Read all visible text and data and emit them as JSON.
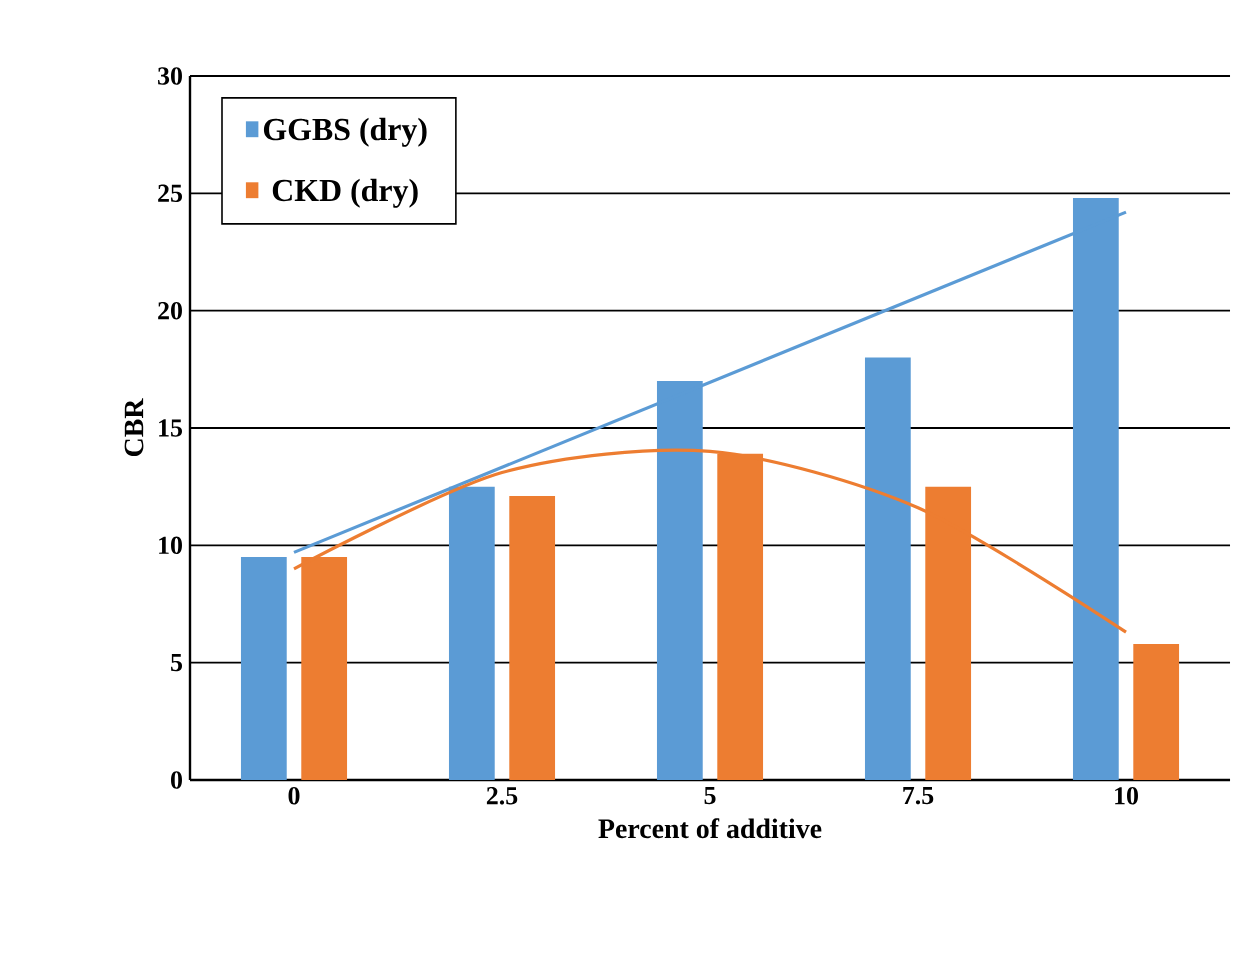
{
  "chart_data": {
    "type": "bar",
    "xlabel": "Percent of additive",
    "ylabel": "CBR",
    "categories": [
      "0",
      "2.5",
      "5",
      "7.5",
      "10"
    ],
    "ylim": [
      0,
      30
    ],
    "yticks": [
      0,
      5,
      10,
      15,
      20,
      25,
      30
    ],
    "grid": "y",
    "legend": "top left",
    "series": [
      {
        "name": "GGBS (dry)",
        "color": "#5b9bd5",
        "values": [
          9.5,
          12.5,
          17,
          18,
          24.8
        ]
      },
      {
        "name": "CKD (dry)",
        "color": "#ed7d31",
        "values": [
          9.5,
          12.1,
          13.9,
          12.5,
          5.8
        ]
      },
      {
        "type": "line",
        "color": "#5b9bd5",
        "x": [
          "0",
          "10"
        ],
        "values": [
          9.7,
          24.2
        ]
      },
      {
        "type": "line",
        "color": "#ed7d31",
        "x": [
          "0",
          "2.5",
          "5",
          "7.5",
          "10"
        ],
        "values": [
          9.0,
          13.1,
          14.0,
          11.6,
          6.3
        ]
      }
    ]
  }
}
